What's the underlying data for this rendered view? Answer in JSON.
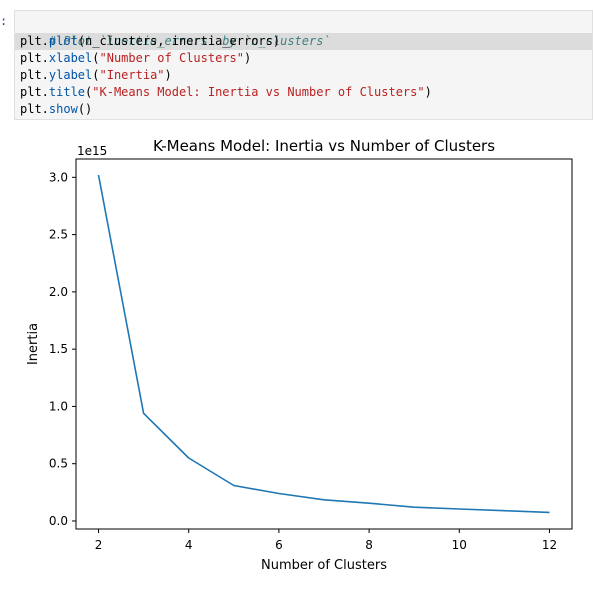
{
  "cell": {
    "prompt": ":",
    "lines": [
      {
        "kind": "comment",
        "text": "# Plot `inertia_errors` by `n_clusters`"
      },
      {
        "kind": "call",
        "obj": "plt.",
        "fn": "plot",
        "args": "(n_clusters, inertia_errors)"
      },
      {
        "kind": "call",
        "obj": "plt.",
        "fn": "xlabel",
        "args_open": "(",
        "str": "\"Number of Clusters\"",
        "args_close": ")"
      },
      {
        "kind": "call",
        "obj": "plt.",
        "fn": "ylabel",
        "args_open": "(",
        "str": "\"Inertia\"",
        "args_close": ")"
      },
      {
        "kind": "call",
        "obj": "plt.",
        "fn": "title",
        "args_open": "(",
        "str": "\"K-Means Model: Inertia vs Number of Clusters\"",
        "args_close": ")"
      },
      {
        "kind": "call",
        "obj": "plt.",
        "fn": "show",
        "args": "()"
      }
    ]
  },
  "chart_data": {
    "type": "line",
    "title": "K-Means Model: Inertia vs Number of Clusters",
    "xlabel": "Number of Clusters",
    "ylabel": "Inertia",
    "y_offset_label": "1e15",
    "x": [
      2,
      3,
      4,
      5,
      6,
      7,
      8,
      9,
      10,
      11,
      12
    ],
    "series": [
      {
        "color": "#1f77b4",
        "values": [
          3.02,
          0.94,
          0.55,
          0.31,
          0.24,
          0.185,
          0.155,
          0.12,
          0.105,
          0.09,
          0.075
        ]
      }
    ],
    "xlim": [
      1.5,
      12.5
    ],
    "ylim": [
      -0.07,
      3.16
    ],
    "xticks": [
      2,
      4,
      6,
      8,
      10,
      12
    ],
    "yticks": [
      0.0,
      0.5,
      1.0,
      1.5,
      2.0,
      2.5,
      3.0
    ],
    "yticklabels": [
      "0.0",
      "0.5",
      "1.0",
      "1.5",
      "2.0",
      "2.5",
      "3.0"
    ],
    "grid": false
  }
}
